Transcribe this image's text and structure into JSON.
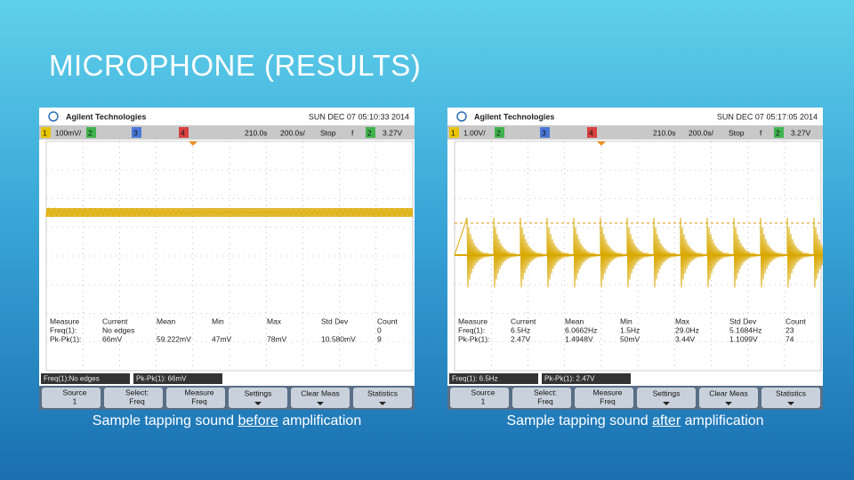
{
  "title": "MICROPHONE (RESULTS)",
  "panels": [
    {
      "brand": "Agilent Technologies",
      "datetime": "SUN DEC 07 05:10:33 2014",
      "channel_bar": [
        "1",
        "100mV/",
        "2",
        "3",
        "4",
        "210.0s",
        "200.0s/",
        "Stop",
        "f",
        "2",
        "3.27V"
      ],
      "table": {
        "header": [
          "Measure",
          "Current",
          "Mean",
          "Min",
          "Max",
          "Std Dev",
          "Count"
        ],
        "rows": [
          [
            "Freq(1):",
            "No edges",
            null,
            null,
            null,
            null,
            "0"
          ],
          [
            "Pk-Pk(1):",
            "66mV",
            "59.222mV",
            "47mV",
            "78mV",
            "10.580mV",
            "9"
          ]
        ]
      },
      "status": [
        "Freq(1):No edges",
        "Pk-Pk(1): 66mV"
      ],
      "softkeys": [
        {
          "label": "Source",
          "value": "1"
        },
        {
          "label": "Select:",
          "value": "Freq"
        },
        {
          "label": "Measure",
          "value": "Freq"
        },
        {
          "label": "Settings"
        },
        {
          "label": "Clear Meas"
        },
        {
          "label": "Statistics"
        }
      ],
      "caption": {
        "pre": "Sample tapping sound",
        "emph": "before",
        "post": "amplification"
      }
    },
    {
      "brand": "Agilent Technologies",
      "datetime": "SUN DEC 07 05:17:05 2014",
      "channel_bar": [
        "1",
        "1.00V/",
        "2",
        "3",
        "4",
        "210.0s",
        "200.0s/",
        "Stop",
        "f",
        "2",
        "3.27V"
      ],
      "table": {
        "header": [
          "Measure",
          "Current",
          "Mean",
          "Min",
          "Max",
          "Std Dev",
          "Count"
        ],
        "rows": [
          [
            "Freq(1):",
            "6.5Hz",
            "6.0662Hz",
            "1.5Hz",
            "29.0Hz",
            "5.1684Hz",
            "23"
          ],
          [
            "Pk-Pk(1):",
            "2.47V",
            "1.4948V",
            "50mV",
            "3.44V",
            "1.1099V",
            "74"
          ]
        ]
      },
      "status": [
        "Freq(1): 6.5Hz",
        "Pk-Pk(1): 2.47V"
      ],
      "softkeys": [
        {
          "label": "Source",
          "value": "1"
        },
        {
          "label": "Select:",
          "value": "Freq"
        },
        {
          "label": "Measure",
          "value": "Freq"
        },
        {
          "label": "Settings"
        },
        {
          "label": "Clear Meas"
        },
        {
          "label": "Statistics"
        }
      ],
      "caption": {
        "pre": "Sample tapping sound",
        "emph": "after",
        "post": "amplification"
      }
    }
  ]
}
